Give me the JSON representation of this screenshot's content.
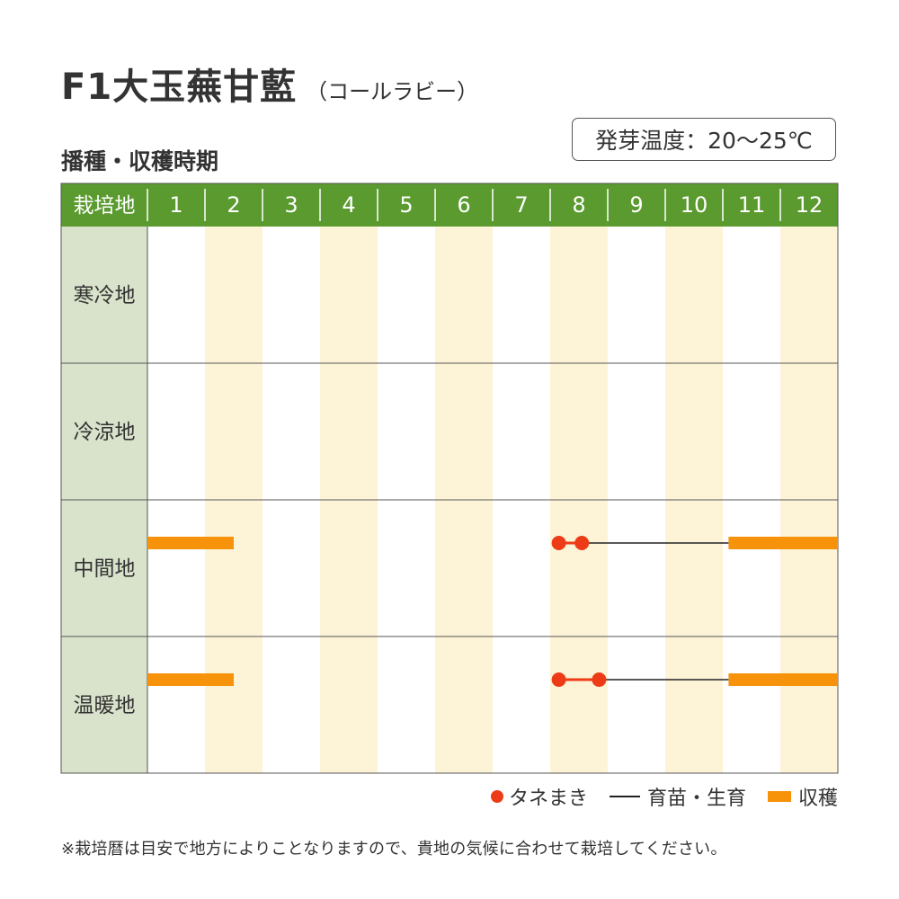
{
  "title": "F1大玉蕪甘藍",
  "title_sub": "（コールラビー）",
  "subtitle": "播種・収穫時期",
  "germination_temp": "発芽温度：20～25℃",
  "footnote": "※栽培暦は目安で地方によりことなりますので、貴地の気候に合わせて栽培してください。",
  "chart_data": {
    "type": "table",
    "header_label": "栽培地",
    "months": [
      "1",
      "2",
      "3",
      "4",
      "5",
      "6",
      "7",
      "8",
      "9",
      "10",
      "11",
      "12"
    ],
    "colors": {
      "header_bg": "#5a9a2f",
      "header_text": "#ffffff",
      "region_bg": "#d9e2cb",
      "stripe": "#fdf3d6",
      "sowing": "#ee3b17",
      "nursery": "#222222",
      "harvest": "#f7930b"
    },
    "legend": {
      "sowing": "タネまき",
      "nursery": "育苗・生育",
      "harvest": "収穫"
    },
    "regions": [
      {
        "name": "寒冷地",
        "sowing": [],
        "nursery": [],
        "harvest": []
      },
      {
        "name": "冷涼地",
        "sowing": [],
        "nursery": [],
        "harvest": []
      },
      {
        "name": "中間地",
        "sowing": [
          [
            8.15,
            8.55
          ]
        ],
        "nursery": [
          [
            8.55,
            11.1
          ]
        ],
        "harvest": [
          [
            1.0,
            2.5
          ],
          [
            11.1,
            13.0
          ]
        ]
      },
      {
        "name": "温暖地",
        "sowing": [
          [
            8.15,
            8.85
          ]
        ],
        "nursery": [
          [
            8.85,
            11.1
          ]
        ],
        "harvest": [
          [
            1.0,
            2.5
          ],
          [
            11.1,
            13.0
          ]
        ]
      }
    ]
  }
}
